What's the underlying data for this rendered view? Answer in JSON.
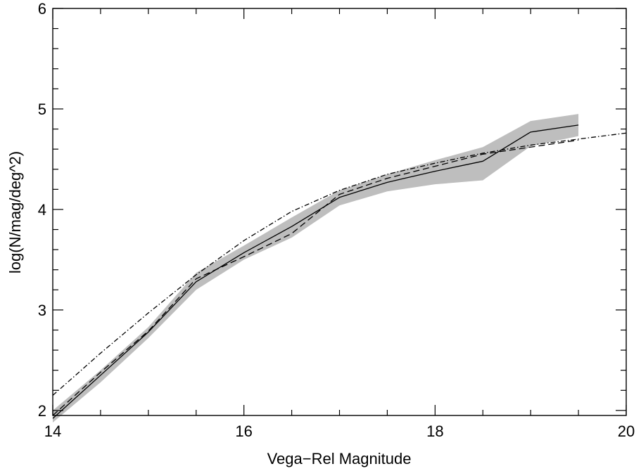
{
  "chart_data": {
    "type": "line",
    "title": "",
    "xlabel": "Vega−Rel Magnitude",
    "ylabel": "log(N/mag/deg^2)",
    "xlim": [
      14,
      20
    ],
    "ylim": [
      1.95,
      6
    ],
    "x_ticks": [
      14,
      16,
      18,
      20
    ],
    "x_tick_labels": [
      "14",
      "16",
      "18",
      "20"
    ],
    "x_minor_step": 0.5,
    "y_ticks": [
      2,
      3,
      4,
      5,
      6
    ],
    "y_tick_labels": [
      "2",
      "3",
      "4",
      "5",
      "6"
    ],
    "y_minor_step": 0.2,
    "grid": false,
    "band": {
      "color": "#bebebe",
      "x": [
        14.0,
        14.5,
        15.0,
        15.5,
        16.0,
        16.5,
        17.0,
        17.5,
        18.0,
        18.5,
        19.0,
        19.5
      ],
      "lower": [
        1.88,
        2.28,
        2.72,
        3.2,
        3.5,
        3.72,
        4.04,
        4.18,
        4.25,
        4.29,
        4.63,
        4.73
      ],
      "upper": [
        2.0,
        2.4,
        2.83,
        3.37,
        3.64,
        3.92,
        4.19,
        4.35,
        4.49,
        4.62,
        4.88,
        4.95
      ]
    },
    "series": [
      {
        "style": "solid",
        "color": "#000000",
        "x": [
          14.0,
          14.5,
          15.0,
          15.5,
          16.0,
          16.5,
          17.0,
          17.5,
          18.0,
          18.5,
          19.0,
          19.5
        ],
        "y": [
          1.92,
          2.35,
          2.78,
          3.28,
          3.57,
          3.83,
          4.12,
          4.27,
          4.38,
          4.48,
          4.77,
          4.84
        ]
      },
      {
        "style": "dashed",
        "color": "#000000",
        "x": [
          14.0,
          14.5,
          15.0,
          15.5,
          16.0,
          16.5,
          17.0,
          17.5,
          18.0,
          18.5,
          19.0,
          19.5
        ],
        "y": [
          1.95,
          2.38,
          2.79,
          3.31,
          3.53,
          3.76,
          4.15,
          4.31,
          4.43,
          4.55,
          4.62,
          4.69
        ]
      },
      {
        "style": "dashdot",
        "color": "#000000",
        "x": [
          14.0,
          14.5,
          15.0,
          15.5,
          16.0,
          16.5,
          17.0,
          17.5,
          18.0,
          18.5,
          19.0,
          19.5,
          20.0
        ],
        "y": [
          2.15,
          2.57,
          2.97,
          3.35,
          3.69,
          3.98,
          4.19,
          4.35,
          4.46,
          4.56,
          4.64,
          4.7,
          4.76
        ]
      }
    ]
  }
}
